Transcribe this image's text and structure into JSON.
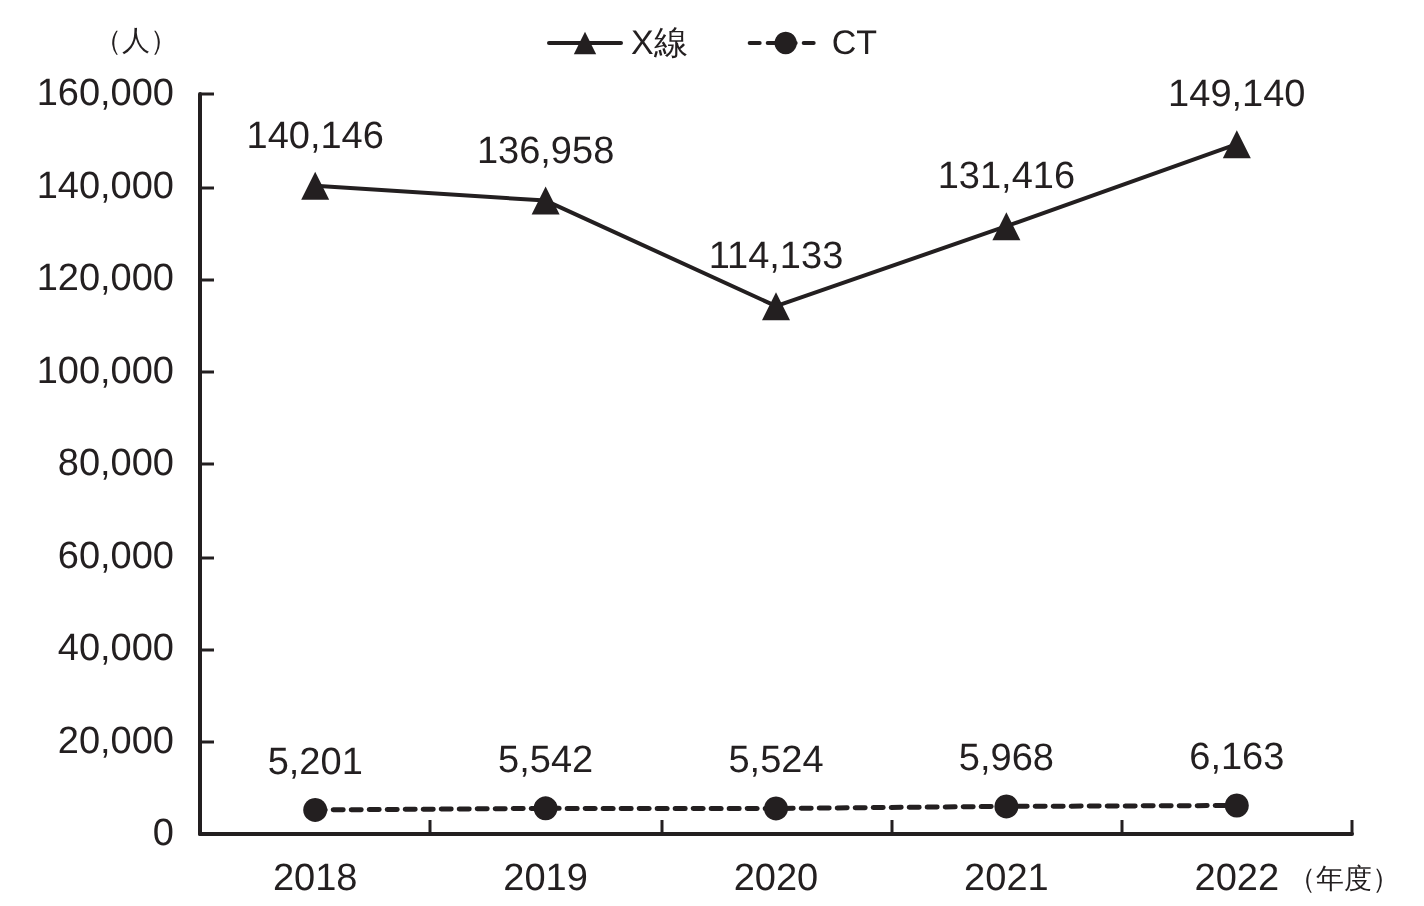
{
  "chart_data": {
    "type": "line",
    "ylabel": "（人）",
    "xlabel": "（年度）",
    "categories": [
      "2018",
      "2019",
      "2020",
      "2021",
      "2022"
    ],
    "series": [
      {
        "name": "X線",
        "color": "#231f20",
        "marker": "triangle",
        "line_style": "solid",
        "values": [
          140146,
          136958,
          114133,
          131416,
          149140
        ],
        "value_labels": [
          "140,146",
          "136,958",
          "114,133",
          "131,416",
          "149,140"
        ]
      },
      {
        "name": "CT",
        "color": "#231f20",
        "marker": "circle",
        "line_style": "dashed",
        "values": [
          5201,
          5542,
          5524,
          5968,
          6163
        ],
        "value_labels": [
          "5,201",
          "5,542",
          "5,524",
          "5,968",
          "6,163"
        ]
      }
    ],
    "ylim": [
      0,
      160000
    ],
    "yticks": [
      {
        "value": 0,
        "label": "0"
      },
      {
        "value": 20000,
        "label": "20,000"
      },
      {
        "value": 40000,
        "label": "40,000"
      },
      {
        "value": 60000,
        "label": "60,000"
      },
      {
        "value": 80000,
        "label": "80,000"
      },
      {
        "value": 100000,
        "label": "100,000"
      },
      {
        "value": 120000,
        "label": "120,000"
      },
      {
        "value": 140000,
        "label": "140,000"
      },
      {
        "value": 160000,
        "label": "160,000"
      }
    ],
    "legend": "top"
  }
}
